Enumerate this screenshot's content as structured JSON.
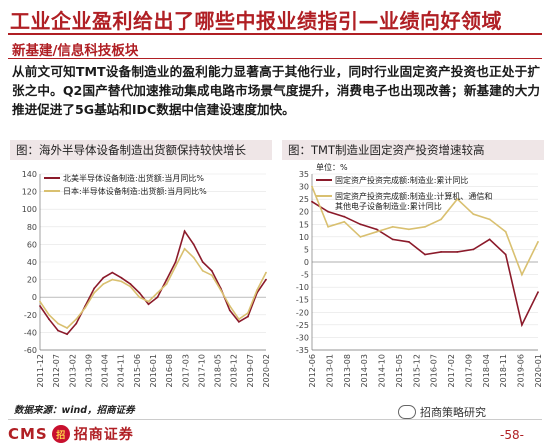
{
  "header": {
    "title": "工业企业盈利给出了哪些中报业绩指引—业绩向好领域",
    "section": "新基建/信息科技板块"
  },
  "body": {
    "text": "从前文可知TMT设备制造业的盈利能力显著高于其他行业，同时行业固定资产投资也正处于扩张之中。Q2国产替代加速推动集成电路市场景气度提升，消费电子也出现改善；新基建的大力推进促进了5G基站和IDC数据中信建设速度加快。"
  },
  "charts": {
    "left": {
      "caption": "图：海外半导体设备制造出货额保持较快增长",
      "legend": [
        "北美半导体设备制造:出货额:当月同比%",
        "日本:半导体设备制造:出货额:当月同比%"
      ]
    },
    "right": {
      "caption": "图：TMT制造业固定资产投资增速较高",
      "unit": "单位：%",
      "legend": [
        "固定资产投资完成额:制造业:累计同比",
        "固定资产投资完成额:制造业:计算机、通信和其他电子设备制造业:累计同比"
      ]
    }
  },
  "chart_data": [
    {
      "type": "line",
      "x": [
        "2011-12",
        "2012-04",
        "2012-08",
        "2012-12",
        "2013-04",
        "2013-08",
        "2013-12",
        "2014-04",
        "2014-08",
        "2014-12",
        "2015-04",
        "2015-08",
        "2015-12",
        "2016-04",
        "2016-08",
        "2016-12",
        "2017-04",
        "2017-08",
        "2017-12",
        "2018-04",
        "2018-08",
        "2018-12",
        "2019-04",
        "2019-08",
        "2019-12",
        "2020-04"
      ],
      "x_ticks": [
        "2011-12",
        "2012-07",
        "2013-02",
        "2013-09",
        "2014-04",
        "2014-11",
        "2015-06",
        "2016-01",
        "2016-08",
        "2017-03",
        "2017-10",
        "2018-05",
        "2018-12",
        "2019-07",
        "2020-02"
      ],
      "y_ticks": [
        "-60",
        "-40",
        "-20",
        "0",
        "20",
        "40",
        "60",
        "80",
        "100",
        "120",
        "140"
      ],
      "ylim": [
        -60,
        140
      ],
      "series": [
        {
          "name": "北美半导体设备制造:出货额:当月同比%",
          "color": "#8b1a2a",
          "values": [
            -10,
            -25,
            -38,
            -42,
            -30,
            -10,
            10,
            22,
            28,
            22,
            15,
            5,
            -8,
            0,
            20,
            40,
            75,
            60,
            40,
            30,
            10,
            -15,
            -28,
            -22,
            5,
            20
          ]
        },
        {
          "name": "日本:半导体设备制造:出货额:当月同比%",
          "color": "#d9c070",
          "values": [
            -5,
            -20,
            -30,
            -35,
            -25,
            -12,
            5,
            15,
            20,
            18,
            12,
            0,
            -5,
            5,
            15,
            35,
            55,
            45,
            30,
            25,
            8,
            -10,
            -25,
            -18,
            8,
            28
          ]
        }
      ]
    },
    {
      "type": "line",
      "x": [
        "2012-06",
        "2013-01",
        "2013-08",
        "2014-03",
        "2014-10",
        "2015-05",
        "2015-12",
        "2016-07",
        "2017-02",
        "2017-09",
        "2018-04",
        "2018-11",
        "2019-06",
        "2020-01",
        "2020-05"
      ],
      "x_ticks": [
        "2012-06",
        "2013-01",
        "2013-08",
        "2014-03",
        "2014-10",
        "2015-05",
        "2015-12",
        "2016-07",
        "2017-02",
        "2017-09",
        "2018-04",
        "2018-11",
        "2019-06",
        "2020-01"
      ],
      "y_ticks": [
        "-35",
        "-30",
        "-25",
        "-20",
        "-15",
        "-10",
        "-5",
        "0",
        "5",
        "10",
        "15",
        "20",
        "25",
        "30",
        "35"
      ],
      "ylim": [
        -35,
        35
      ],
      "series": [
        {
          "name": "固定资产投资完成额:制造业:累计同比",
          "color": "#8b1a2a",
          "values": [
            24,
            20,
            18,
            15,
            13,
            9,
            8,
            3,
            4,
            4,
            5,
            9,
            3,
            -25,
            -12
          ]
        },
        {
          "name": "固定资产投资完成额:制造业:计算机、通信和其他电子设备制造业:累计同比",
          "color": "#d9c070",
          "values": [
            30,
            14,
            16,
            10,
            12,
            14,
            13,
            14,
            17,
            25,
            19,
            17,
            12,
            -5,
            8
          ]
        }
      ]
    }
  ],
  "footer": {
    "source": "数据来源：wind，招商证券",
    "logo_en": "CMS",
    "logo_badge": "招",
    "logo_cn": "招商证券",
    "wechat": "招商策略研究",
    "page": "-58-"
  }
}
